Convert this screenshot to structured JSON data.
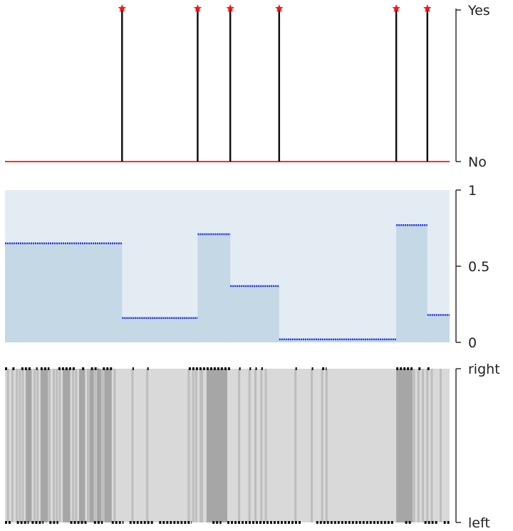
{
  "chart_data": [
    {
      "type": "event-spikes",
      "panel": "top",
      "x_domain": [
        0,
        300
      ],
      "y_ticks": [
        "No",
        "Yes"
      ],
      "events_x": [
        79,
        130,
        152,
        185,
        264,
        285
      ],
      "colors": {
        "baseline": "#ff2a2a",
        "spike": "#111111",
        "marker": "#ff1010"
      },
      "grid": false
    },
    {
      "type": "step-area",
      "panel": "middle",
      "x_domain": [
        0,
        300
      ],
      "ylim": [
        0,
        1
      ],
      "y_ticks": [
        "0",
        "0.5",
        "1"
      ],
      "segments": [
        {
          "x0": 0,
          "x1": 79,
          "value": 0.65
        },
        {
          "x0": 79,
          "x1": 130,
          "value": 0.16
        },
        {
          "x0": 130,
          "x1": 152,
          "value": 0.71
        },
        {
          "x0": 152,
          "x1": 185,
          "value": 0.37
        },
        {
          "x0": 185,
          "x1": 264,
          "value": 0.02
        },
        {
          "x0": 264,
          "x1": 285,
          "value": 0.77
        },
        {
          "x0": 285,
          "x1": 300,
          "value": 0.18
        }
      ],
      "colors": {
        "background": "#e3ecf3",
        "fill": "#c4d8e6",
        "line": "#2030e0"
      },
      "grid": false
    },
    {
      "type": "binary-raster",
      "panel": "bottom",
      "x_domain": [
        0,
        300
      ],
      "y_ticks": [
        "left",
        "right"
      ],
      "dark_bands": [
        [
          14,
          18
        ],
        [
          24,
          29
        ],
        [
          39,
          44
        ],
        [
          50,
          54
        ],
        [
          57,
          60
        ],
        [
          62,
          65
        ],
        [
          67,
          72
        ],
        [
          136,
          150
        ],
        [
          264,
          275
        ]
      ],
      "light_lines": [
        2,
        5,
        8,
        10,
        12,
        20,
        22,
        30,
        33,
        35,
        37,
        46,
        48,
        56,
        61,
        66,
        74,
        86,
        96,
        124,
        127,
        129,
        132,
        133,
        158,
        165,
        169,
        173,
        176,
        196,
        207,
        214,
        217,
        276,
        279,
        282,
        285,
        288,
        294
      ],
      "right_markers": [
        [
          0,
          2
        ],
        [
          5,
          7
        ],
        [
          11,
          18
        ],
        [
          21,
          22
        ],
        [
          24,
          30
        ],
        [
          36,
          48
        ],
        [
          52,
          54
        ],
        [
          58,
          63
        ],
        [
          66,
          73
        ],
        [
          86,
          87
        ],
        [
          96,
          97
        ],
        [
          124,
          152
        ],
        [
          158,
          159
        ],
        [
          165,
          166
        ],
        [
          169,
          170
        ],
        [
          173,
          174
        ],
        [
          196,
          197
        ],
        [
          207,
          208
        ],
        [
          214,
          217
        ],
        [
          264,
          276
        ],
        [
          279,
          281
        ],
        [
          285,
          287
        ]
      ],
      "left_markers": [
        [
          0,
          4
        ],
        [
          8,
          16
        ],
        [
          18,
          26
        ],
        [
          30,
          36
        ],
        [
          44,
          56
        ],
        [
          60,
          66
        ],
        [
          72,
          80
        ],
        [
          84,
          100
        ],
        [
          104,
          126
        ],
        [
          140,
          146
        ],
        [
          150,
          200
        ],
        [
          210,
          262
        ],
        [
          270,
          274
        ],
        [
          283,
          292
        ],
        [
          296,
          300
        ]
      ],
      "colors": {
        "background": "#d9d9d9",
        "dark": "#a6a6a6",
        "light": "#bdbdbd",
        "marker": "#111111"
      },
      "grid": false
    }
  ]
}
